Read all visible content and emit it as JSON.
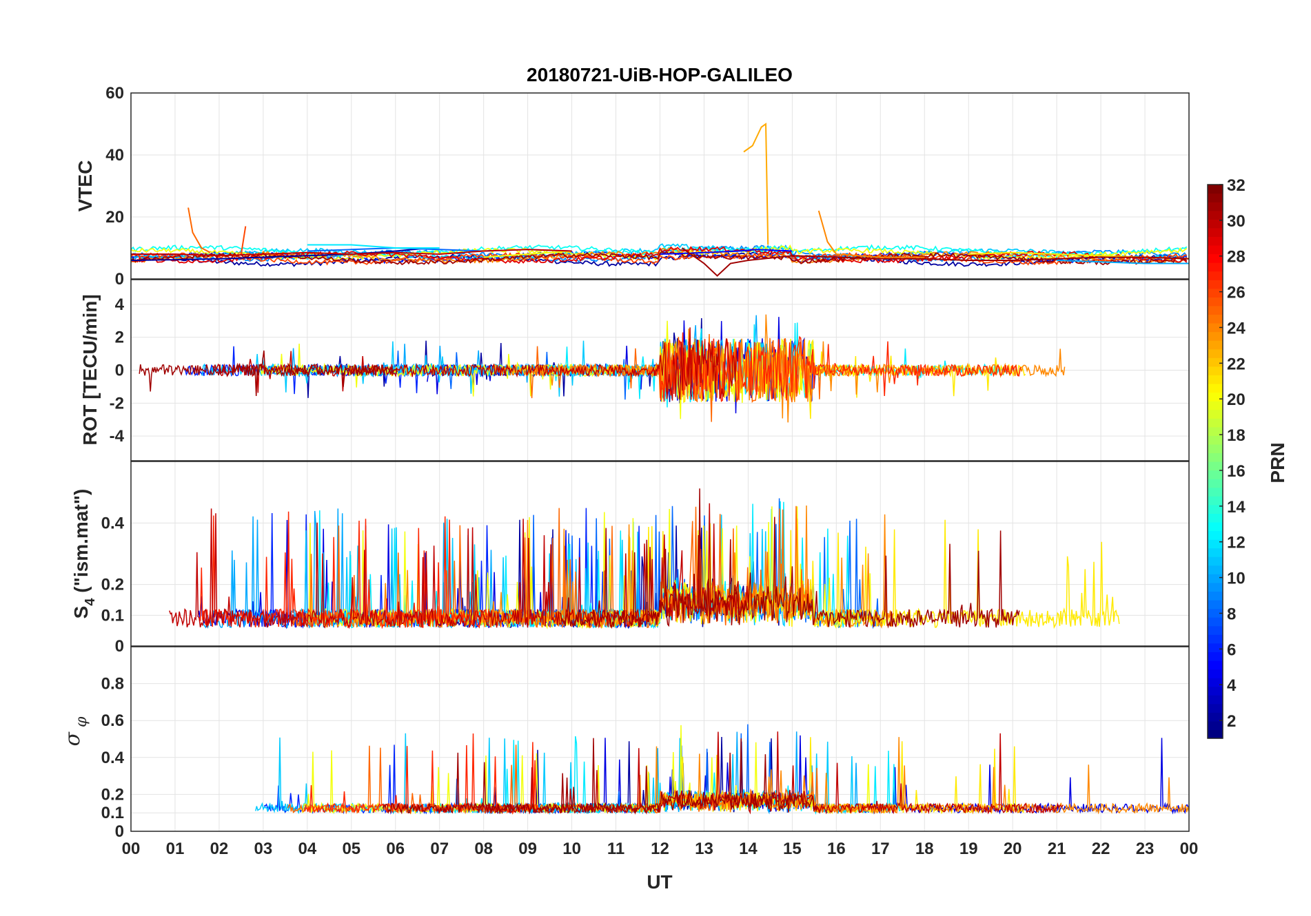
{
  "chart_data": {
    "type": "line",
    "title": "20180721-UiB-HOP-GALILEO",
    "xlabel": "UT",
    "x_ticks": [
      "00",
      "01",
      "02",
      "03",
      "04",
      "05",
      "06",
      "07",
      "08",
      "09",
      "10",
      "11",
      "12",
      "13",
      "14",
      "15",
      "16",
      "17",
      "18",
      "19",
      "20",
      "21",
      "22",
      "23",
      "00"
    ],
    "x_range_hours": [
      0,
      24
    ],
    "colorbar": {
      "label": "PRN",
      "range": [
        1,
        32
      ],
      "ticks": [
        "2",
        "4",
        "6",
        "8",
        "10",
        "12",
        "14",
        "16",
        "18",
        "20",
        "22",
        "24",
        "26",
        "28",
        "30",
        "32"
      ]
    },
    "panels": [
      {
        "id": "vtec",
        "ylabel": "VTEC",
        "ylim": [
          0,
          60
        ],
        "y_ticks": [
          "0",
          "20",
          "40",
          "60"
        ],
        "series": [
          {
            "prn": 2,
            "points": [
              [
                0,
                6
              ],
              [
                1,
                6.2
              ],
              [
                2,
                6.5
              ],
              [
                3,
                7
              ],
              [
                4,
                7.5
              ],
              [
                5,
                8
              ],
              [
                6,
                9
              ],
              [
                6.8,
                10
              ]
            ]
          },
          {
            "prn": 5,
            "points": [
              [
                12,
                8
              ],
              [
                13,
                8.5
              ],
              [
                13.8,
                9
              ],
              [
                14.2,
                9.5
              ],
              [
                15,
                9
              ]
            ]
          },
          {
            "prn": 8,
            "points": [
              [
                4,
                9
              ],
              [
                5,
                9.5
              ],
              [
                6,
                10
              ],
              [
                7,
                9.5
              ],
              [
                8,
                9
              ],
              [
                9,
                9.5
              ],
              [
                10,
                9
              ]
            ]
          },
          {
            "prn": 10,
            "points": [
              [
                21,
                6
              ],
              [
                22,
                5.5
              ],
              [
                23,
                5
              ],
              [
                24,
                5
              ]
            ]
          },
          {
            "prn": 12,
            "points": [
              [
                4,
                11
              ],
              [
                5,
                11
              ],
              [
                6,
                10
              ],
              [
                7,
                10
              ]
            ]
          },
          {
            "prn": 20,
            "points": [
              [
                8,
                7
              ],
              [
                9,
                8
              ],
              [
                10,
                9
              ]
            ]
          },
          {
            "prn": 21,
            "points": [
              [
                19,
                8
              ],
              [
                20,
                8.5
              ],
              [
                21,
                8
              ],
              [
                22,
                7.5
              ],
              [
                23,
                7
              ],
              [
                24,
                6.5
              ]
            ]
          },
          {
            "prn": 23,
            "points": [
              [
                13.9,
                41
              ],
              [
                14.1,
                43
              ],
              [
                14.3,
                49
              ],
              [
                14.4,
                50
              ],
              [
                14.45,
                11
              ]
            ]
          },
          {
            "prn": 24,
            "points": [
              [
                15.6,
                22
              ],
              [
                15.8,
                12
              ],
              [
                16,
                8
              ],
              [
                17,
                7
              ],
              [
                18,
                7
              ]
            ]
          },
          {
            "prn": 25,
            "points": [
              [
                1.3,
                23
              ],
              [
                1.4,
                15
              ],
              [
                1.6,
                10
              ],
              [
                1.8,
                8.5
              ]
            ]
          },
          {
            "prn": 26,
            "points": [
              [
                2.5,
                8
              ],
              [
                2.6,
                17
              ]
            ]
          },
          {
            "prn": 30,
            "points": [
              [
                0,
                8
              ],
              [
                1,
                8
              ],
              [
                2,
                7.5
              ],
              [
                3,
                8
              ],
              [
                4,
                8.5
              ],
              [
                5,
                8
              ],
              [
                6,
                8.5
              ],
              [
                7,
                8
              ],
              [
                8,
                9
              ],
              [
                9,
                9.5
              ],
              [
                10,
                9
              ]
            ]
          },
          {
            "prn": 31,
            "points": [
              [
                12.5,
                10
              ],
              [
                13,
                5
              ],
              [
                13.3,
                1
              ],
              [
                13.6,
                5
              ],
              [
                14,
                6
              ],
              [
                15,
                7.5
              ],
              [
                16,
                7
              ],
              [
                17,
                6.5
              ],
              [
                18,
                6.5
              ],
              [
                19,
                6
              ],
              [
                20,
                6
              ],
              [
                21,
                6.5
              ],
              [
                22,
                7
              ],
              [
                23,
                7
              ],
              [
                24,
                6.5
              ]
            ]
          }
        ]
      },
      {
        "id": "rot",
        "ylabel": "ROT [TECU/min]",
        "ylim": [
          -5.5,
          5.5
        ],
        "y_ticks": [
          "-4",
          "-2",
          "0",
          "2",
          "4"
        ],
        "series": []
      },
      {
        "id": "s4",
        "ylabel": "S4 (\"ism.mat\")",
        "ylim": [
          0,
          0.6
        ],
        "y_ticks": [
          "0",
          "0.1",
          "0.2",
          "0.4"
        ],
        "series": []
      },
      {
        "id": "sigma_phi",
        "ylabel": "σ φ",
        "ylim": [
          0,
          1.0
        ],
        "y_ticks": [
          "0",
          "0.1",
          "0.2",
          "0.4",
          "0.6",
          "0.8"
        ],
        "series": []
      }
    ]
  }
}
